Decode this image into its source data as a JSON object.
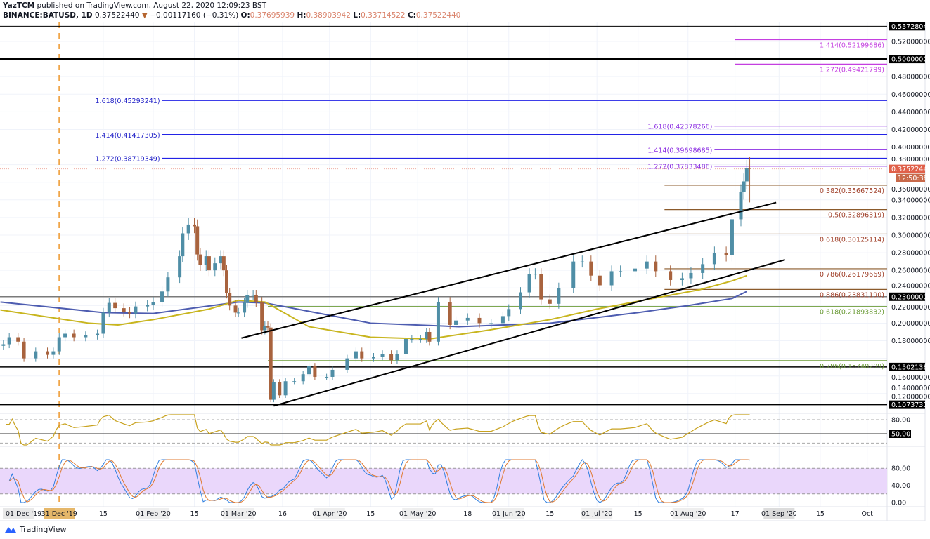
{
  "header": {
    "publisher": "YazTCM",
    "published_text": "published on TradingView.com, August 22, 2020 12:09:23 BST",
    "symbol": "BINANCE:BATUSD, 1D",
    "last": "0.37522440",
    "change": "−0.00117160 (−0.31%)",
    "o_label": "O:",
    "o": "0.37695939",
    "h_label": "H:",
    "h": "0.38903942",
    "l_label": "L:",
    "l": "0.33714522",
    "c_label": "C:",
    "c": "0.37522440"
  },
  "logo": {
    "text": "TradingView"
  },
  "colors": {
    "bull": "#4f8ea6",
    "bear": "#a8633e",
    "ma_slow": "#4d5cb0",
    "ma_fast": "#c8b51e",
    "fib_ext": "#2323e6",
    "fib_ext2": "#8a2be2",
    "fib_top": "#c43fe0",
    "fib_ret": "#8b5a2b",
    "fib_green": "#6b9b37",
    "price_tag": "#e0604a",
    "stoch_band": "#ead7fb",
    "rsi": "#c8a21e",
    "stoch_k": "#2f7fe0",
    "stoch_d": "#e07a2f"
  },
  "chart_data": {
    "type": "candlestick",
    "ylim": [
      0.095,
      0.545
    ],
    "y_ticks": [
      "0.52000000",
      "0.48000000",
      "0.46000000",
      "0.44000000",
      "0.42000000",
      "0.40000000",
      "0.38000000",
      "0.36000000",
      "0.34000000",
      "0.32000000",
      "0.30000000",
      "0.28000000",
      "0.26000000",
      "0.24000000",
      "0.22000000",
      "0.20000000",
      "0.18000000",
      "0.16000000",
      "0.14000000",
      "0.12000000"
    ],
    "x_ticks": [
      {
        "label": "15",
        "date": "2020-01-15"
      },
      {
        "label": "01 Feb '20",
        "date": "2020-02-01"
      },
      {
        "label": "15",
        "date": "2020-02-15"
      },
      {
        "label": "01 Mar '20",
        "date": "2020-03-01"
      },
      {
        "label": "16",
        "date": "2020-03-16"
      },
      {
        "label": "01 Apr '20",
        "date": "2020-04-01"
      },
      {
        "label": "15",
        "date": "2020-04-15"
      },
      {
        "label": "01 May '20",
        "date": "2020-05-01"
      },
      {
        "label": "18",
        "date": "2020-05-18"
      },
      {
        "label": "01 Jun '20",
        "date": "2020-06-01"
      },
      {
        "label": "15",
        "date": "2020-06-15"
      },
      {
        "label": "01 Jul '20",
        "date": "2020-07-01"
      },
      {
        "label": "15",
        "date": "2020-07-15"
      },
      {
        "label": "01 Aug '20",
        "date": "2020-08-01"
      },
      {
        "label": "17",
        "date": "2020-08-17"
      },
      {
        "label": "01 Sep '20",
        "date": "2020-09-01"
      },
      {
        "label": "15",
        "date": "2020-09-15"
      },
      {
        "label": "Oct",
        "date": "2020-10-01"
      }
    ],
    "x_pinned_left": "01 Dec '19",
    "x_marker": {
      "label": "31 Dec '19",
      "date": "2019-12-31"
    },
    "closes": [
      [
        "2019-12-12",
        0.176
      ],
      [
        "2019-12-14",
        0.184
      ],
      [
        "2019-12-17",
        0.179
      ],
      [
        "2019-12-19",
        0.16
      ],
      [
        "2019-12-23",
        0.168
      ],
      [
        "2019-12-27",
        0.164
      ],
      [
        "2019-12-29",
        0.168
      ],
      [
        "2019-12-31",
        0.184
      ],
      [
        "2020-01-02",
        0.188
      ],
      [
        "2020-01-05",
        0.184
      ],
      [
        "2020-01-09",
        0.186
      ],
      [
        "2020-01-13",
        0.188
      ],
      [
        "2020-01-15",
        0.212
      ],
      [
        "2020-01-17",
        0.223
      ],
      [
        "2020-01-19",
        0.217
      ],
      [
        "2020-01-22",
        0.213
      ],
      [
        "2020-01-24",
        0.211
      ],
      [
        "2020-01-26",
        0.219
      ],
      [
        "2020-01-30",
        0.221
      ],
      [
        "2020-02-01",
        0.224
      ],
      [
        "2020-02-04",
        0.236
      ],
      [
        "2020-02-06",
        0.252
      ],
      [
        "2020-02-10",
        0.276
      ],
      [
        "2020-02-11",
        0.302
      ],
      [
        "2020-02-13",
        0.312
      ],
      [
        "2020-02-15",
        0.31
      ],
      [
        "2020-02-16",
        0.278
      ],
      [
        "2020-02-17",
        0.266
      ],
      [
        "2020-02-19",
        0.276
      ],
      [
        "2020-02-20",
        0.26
      ],
      [
        "2020-02-22",
        0.268
      ],
      [
        "2020-02-24",
        0.276
      ],
      [
        "2020-02-25",
        0.26
      ],
      [
        "2020-02-26",
        0.234
      ],
      [
        "2020-02-27",
        0.22
      ],
      [
        "2020-02-29",
        0.212
      ],
      [
        "2020-03-01",
        0.212
      ],
      [
        "2020-03-03",
        0.223
      ],
      [
        "2020-03-04",
        0.232
      ],
      [
        "2020-03-06",
        0.232
      ],
      [
        "2020-03-07",
        0.224
      ],
      [
        "2020-03-09",
        0.192
      ],
      [
        "2020-03-10",
        0.197
      ],
      [
        "2020-03-11",
        0.195
      ],
      [
        "2020-03-12",
        0.113
      ],
      [
        "2020-03-13",
        0.133
      ],
      [
        "2020-03-15",
        0.118
      ],
      [
        "2020-03-17",
        0.134
      ],
      [
        "2020-03-20",
        0.134
      ],
      [
        "2020-03-23",
        0.142
      ],
      [
        "2020-03-25",
        0.151
      ],
      [
        "2020-03-27",
        0.139
      ],
      [
        "2020-03-31",
        0.139
      ],
      [
        "2020-04-02",
        0.147
      ],
      [
        "2020-04-07",
        0.16
      ],
      [
        "2020-04-10",
        0.168
      ],
      [
        "2020-04-12",
        0.16
      ],
      [
        "2020-04-16",
        0.162
      ],
      [
        "2020-04-19",
        0.165
      ],
      [
        "2020-04-22",
        0.158
      ],
      [
        "2020-04-24",
        0.165
      ],
      [
        "2020-04-27",
        0.182
      ],
      [
        "2020-04-29",
        0.182
      ],
      [
        "2020-05-02",
        0.182
      ],
      [
        "2020-05-04",
        0.19
      ],
      [
        "2020-05-05",
        0.179
      ],
      [
        "2020-05-08",
        0.224
      ],
      [
        "2020-05-12",
        0.198
      ],
      [
        "2020-05-14",
        0.203
      ],
      [
        "2020-05-18",
        0.206
      ],
      [
        "2020-05-22",
        0.2
      ],
      [
        "2020-05-26",
        0.2
      ],
      [
        "2020-05-30",
        0.208
      ],
      [
        "2020-06-01",
        0.216
      ],
      [
        "2020-06-05",
        0.235
      ],
      [
        "2020-06-08",
        0.256
      ],
      [
        "2020-06-10",
        0.256
      ],
      [
        "2020-06-12",
        0.227
      ],
      [
        "2020-06-15",
        0.222
      ],
      [
        "2020-06-18",
        0.24
      ],
      [
        "2020-06-23",
        0.27
      ],
      [
        "2020-06-26",
        0.27
      ],
      [
        "2020-06-29",
        0.254
      ],
      [
        "2020-07-02",
        0.243
      ],
      [
        "2020-07-06",
        0.259
      ],
      [
        "2020-07-09",
        0.259
      ],
      [
        "2020-07-14",
        0.262
      ],
      [
        "2020-07-18",
        0.27
      ],
      [
        "2020-07-21",
        0.259
      ],
      [
        "2020-07-26",
        0.249
      ],
      [
        "2020-07-30",
        0.251
      ],
      [
        "2020-08-02",
        0.257
      ],
      [
        "2020-08-06",
        0.267
      ],
      [
        "2020-08-10",
        0.28
      ],
      [
        "2020-08-14",
        0.277
      ],
      [
        "2020-08-16",
        0.318
      ],
      [
        "2020-08-19",
        0.349
      ],
      [
        "2020-08-20",
        0.361
      ],
      [
        "2020-08-21",
        0.376
      ],
      [
        "2020-08-22",
        0.3752244
      ]
    ],
    "last_candle_high": 0.38903942,
    "ma_slow": [
      [
        "2019-12-11",
        0.224
      ],
      [
        "2020-01-15",
        0.212
      ],
      [
        "2020-02-01",
        0.211
      ],
      [
        "2020-03-01",
        0.224
      ],
      [
        "2020-03-10",
        0.223
      ],
      [
        "2020-04-15",
        0.2
      ],
      [
        "2020-05-15",
        0.196
      ],
      [
        "2020-06-15",
        0.2
      ],
      [
        "2020-07-15",
        0.212
      ],
      [
        "2020-08-01",
        0.22
      ],
      [
        "2020-08-16",
        0.228
      ],
      [
        "2020-08-21",
        0.236
      ]
    ],
    "ma_fast": [
      [
        "2019-12-11",
        0.215
      ],
      [
        "2020-01-10",
        0.2
      ],
      [
        "2020-01-20",
        0.198
      ],
      [
        "2020-02-01",
        0.204
      ],
      [
        "2020-02-20",
        0.216
      ],
      [
        "2020-03-01",
        0.226
      ],
      [
        "2020-03-10",
        0.224
      ],
      [
        "2020-03-25",
        0.196
      ],
      [
        "2020-04-15",
        0.184
      ],
      [
        "2020-05-05",
        0.182
      ],
      [
        "2020-05-25",
        0.192
      ],
      [
        "2020-06-15",
        0.204
      ],
      [
        "2020-07-01",
        0.216
      ],
      [
        "2020-07-20",
        0.228
      ],
      [
        "2020-08-05",
        0.238
      ],
      [
        "2020-08-16",
        0.248
      ],
      [
        "2020-08-21",
        0.254
      ]
    ],
    "trendlines": [
      {
        "from": [
          "2020-03-02",
          0.183
        ],
        "to": [
          "2020-08-31",
          0.337
        ]
      },
      {
        "from": [
          "2020-03-13",
          0.106
        ],
        "to": [
          "2020-09-03",
          0.272
        ]
      }
    ],
    "levels": [
      {
        "price": 0.53728047,
        "tag": "0.53728047",
        "width": 1
      },
      {
        "price": 0.5,
        "tag": "0.50000000",
        "width": 3
      },
      {
        "price": 0.23,
        "tag": "0.23000000",
        "width": 1.5,
        "gray": true
      },
      {
        "price": 0.15021387,
        "tag": "0.15021387",
        "width": 1.5
      },
      {
        "price": 0.10737319,
        "tag": "0.10737319",
        "width": 1.5
      }
    ],
    "fib_lines": [
      {
        "label": "1.618(0.45293241)",
        "price": 0.45293241,
        "group": "ext",
        "from": "2020-02-04",
        "label_side": "left"
      },
      {
        "label": "1.414(0.41417305)",
        "price": 0.41417305,
        "group": "ext",
        "from": "2020-02-04",
        "label_side": "left"
      },
      {
        "label": "1.272(0.38719349)",
        "price": 0.38719349,
        "group": "ext",
        "from": "2020-02-04",
        "label_side": "left"
      },
      {
        "label": "1.414(0.52199686)",
        "price": 0.52199686,
        "group": "top",
        "from": "2020-08-17",
        "label_side": "right"
      },
      {
        "label": "1.272(0.49421799)",
        "price": 0.49421799,
        "group": "top",
        "from": "2020-08-17",
        "label_side": "right"
      },
      {
        "label": "1.618(0.42378266)",
        "price": 0.42378266,
        "group": "ext2",
        "from": "2020-08-10",
        "label_side": "left"
      },
      {
        "label": "1.414(0.39698685)",
        "price": 0.39698685,
        "group": "ext2",
        "from": "2020-08-10",
        "label_side": "left"
      },
      {
        "label": "1.272(0.37833486)",
        "price": 0.37833486,
        "group": "ext2",
        "from": "2020-08-10",
        "label_side": "left"
      },
      {
        "label": "0.382(0.35667524)",
        "price": 0.35667524,
        "group": "ret",
        "from": "2020-07-24",
        "label_side": "right"
      },
      {
        "label": "0.5(0.32896319)",
        "price": 0.32896319,
        "group": "ret",
        "from": "2020-07-24",
        "label_side": "right"
      },
      {
        "label": "0.618(0.30125114)",
        "price": 0.30125114,
        "group": "ret",
        "from": "2020-07-24",
        "label_side": "right"
      },
      {
        "label": "0.786(0.26179669)",
        "price": 0.26179669,
        "group": "ret",
        "from": "2020-07-24",
        "label_side": "right"
      },
      {
        "label": "0.886(0.23831190)",
        "price": 0.2383119,
        "group": "ret",
        "from": "2020-07-24",
        "label_side": "right"
      },
      {
        "label": "0.618(0.21893832)",
        "price": 0.21893832,
        "group": "green",
        "from": "2020-03-11",
        "label_side": "right"
      },
      {
        "label": "0.786(0.15740209)",
        "price": 0.15740209,
        "group": "green",
        "from": "2020-03-11",
        "label_side": "right"
      }
    ],
    "price_tag": {
      "price": "0.37522440",
      "countdown": "12:50:38"
    },
    "rsi": {
      "ticks": [
        "80.00"
      ],
      "level_tag": "50.00"
    },
    "stoch": {
      "ticks": [
        "80.00",
        "40.00",
        "0.00"
      ]
    }
  }
}
